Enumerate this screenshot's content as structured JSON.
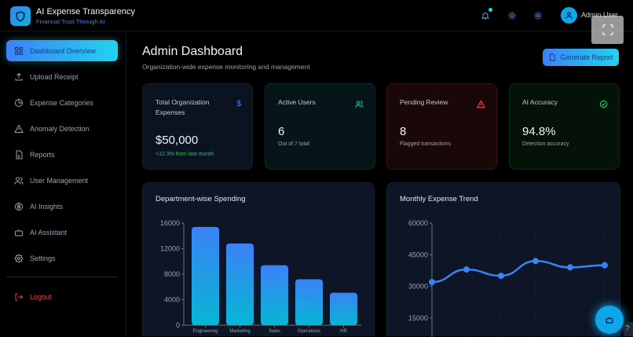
{
  "app": {
    "title": "AI Expense Transparency",
    "subtitle": "Financial Trust Through AI",
    "user": "Admin User"
  },
  "sidebar": {
    "items": [
      {
        "label": "Dashboard Overview",
        "icon": "grid-icon",
        "active": true
      },
      {
        "label": "Upload Receipt",
        "icon": "upload-icon"
      },
      {
        "label": "Expense Categories",
        "icon": "pie-icon"
      },
      {
        "label": "Anomaly Detection",
        "icon": "warning-icon"
      },
      {
        "label": "Reports",
        "icon": "file-icon"
      },
      {
        "label": "User Management",
        "icon": "users-icon"
      },
      {
        "label": "AI Insights",
        "icon": "brain-icon"
      },
      {
        "label": "AI Assistant",
        "icon": "bot-icon"
      },
      {
        "label": "Settings",
        "icon": "gear-icon"
      }
    ],
    "logout": "Logout"
  },
  "main": {
    "title": "Admin Dashboard",
    "subtitle": "Organization-wide expense monitoring and management",
    "generate": "Generate Report"
  },
  "cards": [
    {
      "label": "Total Organization Expenses",
      "value": "$50,000",
      "note": "+12.3% from last month",
      "icon": "$",
      "color": "#3b82f6"
    },
    {
      "label": "Active Users",
      "value": "6",
      "note": "Out of 7 total",
      "color": "#14b8a6"
    },
    {
      "label": "Pending Review",
      "value": "8",
      "note": "Flagged transactions",
      "color": "#ef4444"
    },
    {
      "label": "AI Accuracy",
      "value": "94.8%",
      "note": "Detection accuracy",
      "color": "#22c55e"
    }
  ],
  "chart_data": [
    {
      "type": "bar",
      "title": "Department-wise Spending",
      "categories": [
        "Engineering",
        "Marketing",
        "Sales",
        "Operations",
        "HR"
      ],
      "values": [
        15400,
        12800,
        9400,
        7200,
        5100
      ],
      "ylim": [
        0,
        16000
      ],
      "yticks": [
        0,
        4000,
        8000,
        12000,
        16000
      ],
      "colors": [
        "#3b82f6",
        "#06b6d4"
      ]
    },
    {
      "type": "line",
      "title": "Monthly Expense Trend",
      "values": [
        32000,
        38000,
        35000,
        42000,
        39000,
        40000
      ],
      "ylim": [
        0,
        60000
      ],
      "yticks": [
        15000,
        30000,
        45000,
        60000
      ],
      "color": "#3b82f6"
    }
  ],
  "help": "?"
}
